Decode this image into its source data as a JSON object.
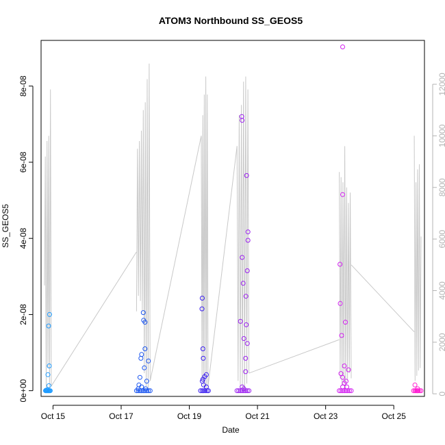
{
  "chart_data": {
    "type": "scatter",
    "title": "ATOM3 Northbound SS_GEOS5",
    "xlabel": "Date",
    "ylabel": "SS_GEOS5",
    "x_unit": "days (October)",
    "xlim": [
      14.65,
      25.9
    ],
    "ylim_left": [
      -1.5e-09,
      9.2e-08
    ],
    "ylim_right": [
      -100,
      13700
    ],
    "x_ticks": [
      {
        "value": 15,
        "label": "Oct 15"
      },
      {
        "value": 17,
        "label": "Oct 17"
      },
      {
        "value": 19,
        "label": "Oct 19"
      },
      {
        "value": 21,
        "label": "Oct 21"
      },
      {
        "value": 23,
        "label": "Oct 23"
      },
      {
        "value": 25,
        "label": "Oct 25"
      }
    ],
    "y_ticks_left": [
      {
        "value": 0,
        "label": "0e+00"
      },
      {
        "value": 2e-08,
        "label": "2e-08"
      },
      {
        "value": 4e-08,
        "label": "4e-08"
      },
      {
        "value": 6e-08,
        "label": "6e-08"
      },
      {
        "value": 8e-08,
        "label": "8e-08"
      }
    ],
    "y_ticks_right": [
      {
        "value": 0,
        "label": "0"
      },
      {
        "value": 2000,
        "label": "2000"
      },
      {
        "value": 4000,
        "label": "4000"
      },
      {
        "value": 6000,
        "label": "6000"
      },
      {
        "value": 8000,
        "label": "8000"
      },
      {
        "value": 10000,
        "label": "10000"
      },
      {
        "value": 12000,
        "label": "12000"
      }
    ],
    "altitude_trace_color": "#c8c8c8",
    "altitude_segments": [
      {
        "x_range": [
          14.75,
          14.95
        ],
        "series": [
          4200,
          9200,
          200,
          9800,
          1000,
          10000,
          100,
          11800,
          300
        ]
      },
      {
        "x_range": [
          17.45,
          17.85
        ],
        "series": [
          3200,
          9500,
          3800,
          9800,
          3600,
          10200,
          3200,
          11000,
          800,
          11300,
          300,
          12200,
          200,
          12800,
          500
        ]
      },
      {
        "x_range": [
          19.35,
          19.55
        ],
        "series": [
          10000,
          500,
          10800,
          300,
          11600,
          200,
          12300,
          100,
          11600,
          300
        ]
      },
      {
        "x_range": [
          20.4,
          20.75
        ],
        "series": [
          9600,
          500,
          10800,
          300,
          11200,
          200,
          12100,
          100,
          12300,
          400,
          11800,
          800
        ]
      },
      {
        "x_range": [
          23.4,
          23.75
        ],
        "series": [
          8600,
          600,
          8400,
          300,
          8200,
          400,
          9600,
          200,
          8000,
          500,
          7400,
          800,
          7800,
          600
        ]
      },
      {
        "x_range": [
          25.6,
          25.8
        ],
        "series": [
          10000,
          500,
          8200,
          700,
          8700,
          900,
          8900,
          1000,
          6100
        ]
      }
    ],
    "altitude_connectors": [
      [
        [
          14.95,
          300
        ],
        [
          17.45,
          5500
        ]
      ],
      [
        [
          17.85,
          500
        ],
        [
          19.35,
          10000
        ]
      ],
      [
        [
          19.55,
          300
        ],
        [
          20.4,
          9600
        ]
      ],
      [
        [
          20.75,
          800
        ],
        [
          23.4,
          2100
        ]
      ],
      [
        [
          23.75,
          5000
        ],
        [
          25.6,
          2400
        ]
      ]
    ],
    "series": [
      {
        "color": "#1e9bff",
        "points": [
          [
            14.78,
            0
          ],
          [
            14.8,
            0
          ],
          [
            14.82,
            0
          ],
          [
            14.84,
            0
          ],
          [
            14.86,
            0
          ],
          [
            14.88,
            0
          ],
          [
            14.9,
            0
          ],
          [
            14.92,
            0
          ],
          [
            14.79,
            1e-10
          ],
          [
            14.83,
            2e-10
          ],
          [
            14.85,
            4.2e-09
          ],
          [
            14.87,
            1.7e-08
          ],
          [
            14.9,
            2e-08
          ],
          [
            14.89,
            6.5e-09
          ],
          [
            14.88,
            1.3e-09
          ]
        ]
      },
      {
        "color": "#1a55f0",
        "points": [
          [
            17.45,
            0
          ],
          [
            17.5,
            0
          ],
          [
            17.55,
            0
          ],
          [
            17.6,
            0
          ],
          [
            17.65,
            0
          ],
          [
            17.7,
            0
          ],
          [
            17.75,
            0
          ],
          [
            17.8,
            0
          ],
          [
            17.85,
            0
          ],
          [
            17.5,
            5e-10
          ],
          [
            17.52,
            1.5e-09
          ],
          [
            17.55,
            3.5e-09
          ],
          [
            17.58,
            8.5e-09
          ],
          [
            17.6,
            9.5e-09
          ],
          [
            17.65,
            2.05e-08
          ],
          [
            17.66,
            1.85e-08
          ],
          [
            17.7,
            1.8e-08
          ],
          [
            17.68,
            6e-09
          ],
          [
            17.7,
            1.1e-08
          ],
          [
            17.75,
            2.5e-09
          ],
          [
            17.8,
            7.8e-09
          ],
          [
            17.6,
            1e-09
          ],
          [
            17.72,
            5e-10
          ]
        ]
      },
      {
        "color": "#3a1ef0",
        "points": [
          [
            19.33,
            0
          ],
          [
            19.38,
            0
          ],
          [
            19.42,
            0
          ],
          [
            19.47,
            0
          ],
          [
            19.52,
            0
          ],
          [
            19.56,
            0
          ],
          [
            19.37,
            2.15e-08
          ],
          [
            19.38,
            2.43e-08
          ],
          [
            19.4,
            1.1e-08
          ],
          [
            19.41,
            8.5e-09
          ],
          [
            19.45,
            3.7e-09
          ],
          [
            19.5,
            4.2e-09
          ],
          [
            19.38,
            2.5e-09
          ],
          [
            19.42,
            1.5e-09
          ],
          [
            19.5,
            1e-09
          ],
          [
            19.4,
            3e-09
          ]
        ]
      },
      {
        "color": "#9b1ef0",
        "points": [
          [
            20.4,
            0
          ],
          [
            20.45,
            0
          ],
          [
            20.5,
            0
          ],
          [
            20.55,
            0
          ],
          [
            20.6,
            0
          ],
          [
            20.65,
            0
          ],
          [
            20.7,
            0
          ],
          [
            20.75,
            0
          ],
          [
            20.5,
            1.82e-08
          ],
          [
            20.54,
            7.2e-08
          ],
          [
            20.55,
            7.1e-08
          ],
          [
            20.68,
            5.65e-08
          ],
          [
            20.55,
            3.5e-08
          ],
          [
            20.58,
            2.82e-08
          ],
          [
            20.72,
            4.17e-08
          ],
          [
            20.72,
            3.95e-08
          ],
          [
            20.7,
            3.15e-08
          ],
          [
            20.66,
            2.48e-08
          ],
          [
            20.67,
            1.73e-08
          ],
          [
            20.6,
            1.37e-08
          ],
          [
            20.7,
            1.24e-08
          ],
          [
            20.65,
            8.5e-09
          ],
          [
            20.65,
            5e-09
          ],
          [
            20.55,
            1e-09
          ],
          [
            20.6,
            5e-10
          ]
        ]
      },
      {
        "color": "#d21ef0",
        "points": [
          [
            23.4,
            0
          ],
          [
            23.45,
            0
          ],
          [
            23.5,
            0
          ],
          [
            23.55,
            0
          ],
          [
            23.6,
            0
          ],
          [
            23.65,
            0
          ],
          [
            23.7,
            0
          ],
          [
            23.75,
            0
          ],
          [
            23.5,
            9.03e-08
          ],
          [
            23.5,
            5.15e-08
          ],
          [
            23.42,
            3.32e-08
          ],
          [
            23.43,
            2.29e-08
          ],
          [
            23.47,
            1.45e-08
          ],
          [
            23.58,
            1.8e-08
          ],
          [
            23.55,
            6.5e-09
          ],
          [
            23.67,
            5.5e-09
          ],
          [
            23.45,
            4.5e-09
          ],
          [
            23.5,
            3.5e-09
          ],
          [
            23.6,
            2.5e-09
          ],
          [
            23.5,
            1e-09
          ],
          [
            23.62,
            1e-09
          ],
          [
            23.55,
            2e-09
          ]
        ]
      },
      {
        "color": "#ff1ed2",
        "points": [
          [
            25.58,
            0
          ],
          [
            25.62,
            0
          ],
          [
            25.65,
            0
          ],
          [
            25.68,
            0
          ],
          [
            25.7,
            0
          ],
          [
            25.72,
            0
          ],
          [
            25.76,
            0
          ],
          [
            25.8,
            0
          ],
          [
            25.62,
            1.5e-09
          ],
          [
            25.7,
            5e-10
          ]
        ]
      }
    ]
  }
}
